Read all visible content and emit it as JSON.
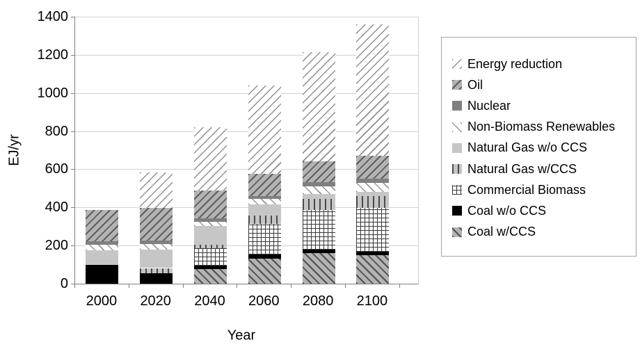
{
  "chart_data": {
    "type": "bar",
    "stacked": true,
    "title": "",
    "xlabel": "Year",
    "ylabel": "EJ/yr",
    "ylim": [
      0,
      1400
    ],
    "ytick_step": 200,
    "yticks": [
      0,
      200,
      400,
      600,
      800,
      1000,
      1200,
      1400
    ],
    "grid": true,
    "legend_position": "right",
    "categories": [
      "2000",
      "2020",
      "2040",
      "2060",
      "2080",
      "2100"
    ],
    "series": [
      {
        "name": "Coal w/CCS",
        "pattern": "backslash-on-gray",
        "values": [
          0,
          0,
          75,
          131,
          159,
          148
        ]
      },
      {
        "name": "Coal w/o CCS",
        "pattern": "solid-black",
        "values": [
          100,
          55,
          18,
          22,
          18,
          18
        ]
      },
      {
        "name": "Commercial Biomass",
        "pattern": "crosshatch",
        "values": [
          0,
          0,
          92,
          162,
          211,
          232
        ]
      },
      {
        "name": "Natural Gas w/CCS",
        "pattern": "vertical-lines",
        "values": [
          0,
          27,
          18,
          44,
          55,
          62
        ]
      },
      {
        "name": "Natural Gas w/o CCS",
        "pattern": "solid-lightgray",
        "values": [
          75,
          97,
          98,
          55,
          29,
          22
        ]
      },
      {
        "name": "Non-Biomass Renewables",
        "pattern": "backslash-on-white",
        "values": [
          30,
          30,
          25,
          32,
          40,
          47
        ]
      },
      {
        "name": "Nuclear",
        "pattern": "solid-darkgray",
        "values": [
          18,
          18,
          18,
          15,
          22,
          22
        ]
      },
      {
        "name": "Oil",
        "pattern": "slash-on-gray",
        "values": [
          165,
          171,
          146,
          116,
          109,
          120
        ]
      },
      {
        "name": "Energy reduction",
        "pattern": "slash-on-white",
        "values": [
          0,
          185,
          330,
          461,
          571,
          688
        ]
      }
    ],
    "totals": [
      388,
      583,
      820,
      1038,
      1214,
      1359
    ],
    "legend_order_top_to_bottom": [
      "Energy reduction",
      "Oil",
      "Nuclear",
      "Non-Biomass Renewables",
      "Natural Gas w/o CCS",
      "Natural Gas w/CCS",
      "Commercial Biomass",
      "Coal w/o CCS",
      "Coal w/CCS"
    ],
    "colors": {
      "solid_black": "#000000",
      "solid_darkgray": "#7f7f7f",
      "solid_lightgray": "#c6c6c6",
      "hatch_gray_bg": "#b3b3b3",
      "gridline": "#d2d2d2",
      "axis": "#7d7d7d",
      "legend_border": "#a3a3a3",
      "text": "#000000"
    }
  }
}
